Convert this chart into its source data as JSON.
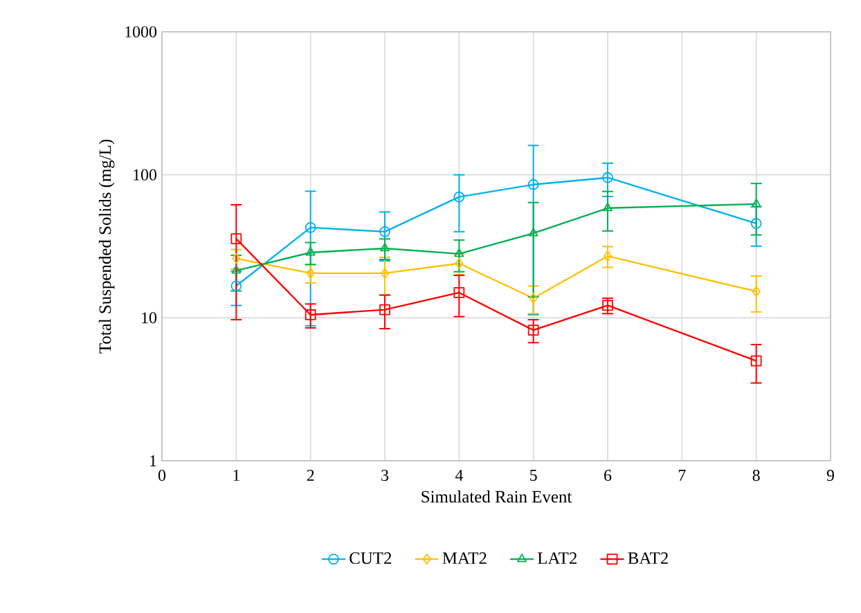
{
  "chart_data": {
    "type": "line",
    "xlabel": "Simulated Rain Event",
    "ylabel": "Total Suspended Solids (mg/L)",
    "x": [
      1,
      2,
      3,
      4,
      5,
      6,
      8
    ],
    "series": [
      {
        "name": "CUT2",
        "color": "#00b0f0",
        "marker": "circle",
        "values": [
          16.7,
          42.8,
          40,
          70,
          85.5,
          95.6,
          45.7
        ],
        "errors": [
          4.5,
          34,
          15,
          30,
          75,
          25,
          14
        ]
      },
      {
        "name": "MAT2",
        "color": "#ffc000",
        "marker": "diamond",
        "values": [
          26,
          20.5,
          20.5,
          24,
          13.7,
          27,
          15.3
        ],
        "errors": [
          4,
          3,
          6,
          4,
          3,
          4.5,
          4.3
        ]
      },
      {
        "name": "LAT2",
        "color": "#00b050",
        "marker": "triangle",
        "values": [
          21.4,
          28.6,
          30.6,
          28,
          39,
          58.5,
          62.5
        ],
        "errors": [
          6,
          5,
          5,
          7,
          25,
          18,
          24.5
        ]
      },
      {
        "name": "BAT2",
        "color": "#ff0000",
        "marker": "square",
        "values": [
          35.7,
          10.5,
          11.4,
          15,
          8.2,
          12.2,
          5
        ],
        "errors": [
          26,
          2,
          3,
          4.8,
          1.5,
          1.5,
          1.5
        ]
      }
    ],
    "xlim": [
      0,
      9
    ],
    "xticks": [
      0,
      1,
      2,
      3,
      4,
      5,
      6,
      7,
      8,
      9
    ],
    "ylim": [
      1,
      1000
    ],
    "yticks": [
      1,
      10,
      100,
      1000
    ],
    "log": "y",
    "grid": true,
    "legend": "bottom"
  }
}
